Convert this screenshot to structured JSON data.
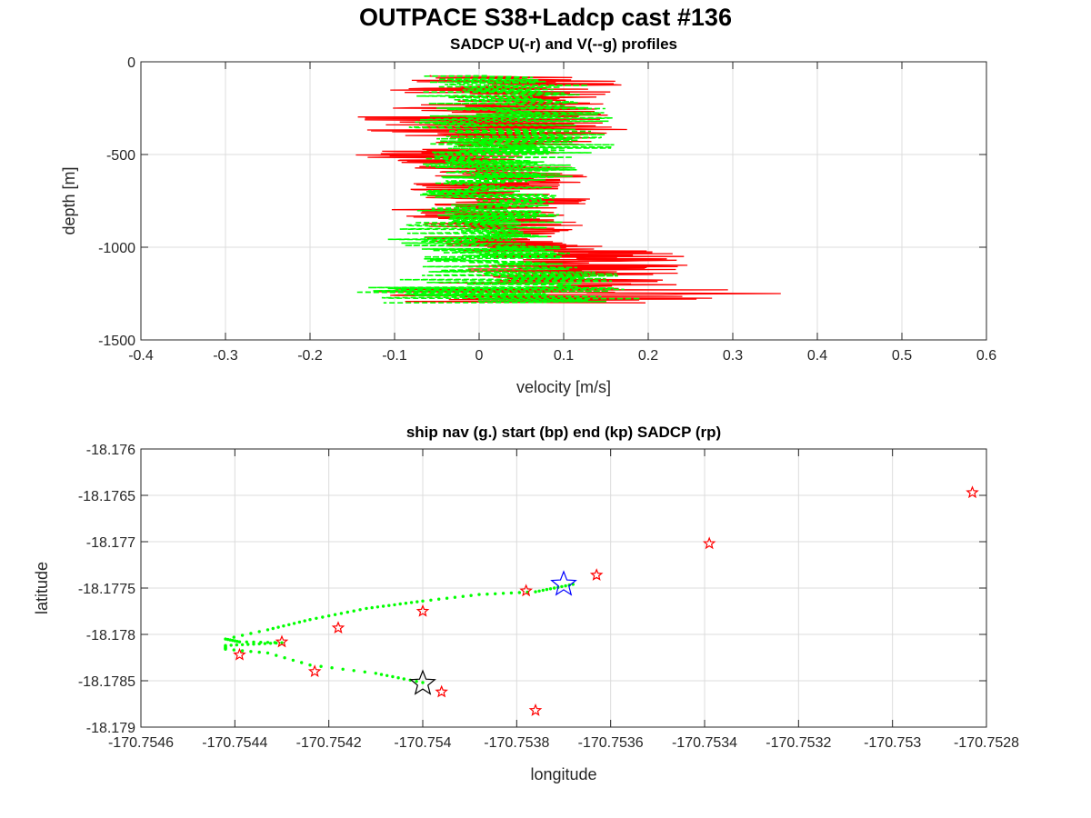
{
  "figure_title": "OUTPACE S38+Ladcp cast #136",
  "chart_data": [
    {
      "type": "line",
      "title": "SADCP U(-r) and V(--g) profiles",
      "xlabel": "velocity [m/s]",
      "ylabel": "depth [m]",
      "xlim": [
        -0.4,
        0.6
      ],
      "ylim": [
        -1500,
        0
      ],
      "xticks": [
        -0.4,
        -0.3,
        -0.2,
        -0.1,
        0,
        0.1,
        0.2,
        0.3,
        0.4,
        0.5,
        0.6
      ],
      "xtick_labels": [
        "-0.4",
        "-0.3",
        "-0.2",
        "-0.1",
        "0",
        "0.1",
        "0.2",
        "0.3",
        "0.4",
        "0.5",
        "0.6"
      ],
      "yticks": [
        0,
        -500,
        -1000,
        -1500
      ],
      "ytick_labels": [
        "0",
        "-500",
        "-1000",
        "-1500"
      ],
      "grid": true,
      "series": [
        {
          "color": "#ff0000",
          "style": "solid",
          "y": [
            -75,
            -100,
            -150,
            -200,
            -250,
            -300,
            -350,
            -400,
            -450,
            -500,
            -550,
            -600,
            -650,
            -700,
            -750,
            -800,
            -850,
            -900,
            -950,
            -1000,
            -1050,
            -1100,
            -1150,
            -1200,
            -1250,
            -1300
          ],
          "x": [
            0.02,
            0.04,
            0.03,
            0.05,
            0.02,
            0.0,
            0.03,
            0.0,
            0.05,
            -0.02,
            0.0,
            0.02,
            0.03,
            -0.01,
            0.05,
            0.0,
            0.02,
            0.03,
            0.02,
            0.06,
            0.14,
            0.12,
            0.1,
            0.08,
            0.1,
            0.05
          ],
          "spread": [
            0.08,
            0.13,
            0.14,
            0.1,
            0.16,
            0.18,
            0.16,
            0.14,
            0.1,
            0.13,
            0.1,
            0.11,
            0.1,
            0.12,
            0.1,
            0.12,
            0.11,
            0.09,
            0.09,
            0.1,
            0.13,
            0.14,
            0.13,
            0.15,
            0.26,
            0.15
          ]
        },
        {
          "color": "#00ff00",
          "style": "dashed",
          "y": [
            -75,
            -100,
            -150,
            -200,
            -250,
            -300,
            -350,
            -400,
            -450,
            -500,
            -550,
            -600,
            -650,
            -700,
            -750,
            -800,
            -850,
            -900,
            -950,
            -1000,
            -1050,
            -1100,
            -1150,
            -1200,
            -1250,
            -1300
          ],
          "x": [
            0.0,
            0.02,
            0.03,
            0.02,
            0.05,
            0.04,
            0.02,
            0.05,
            0.06,
            0.04,
            0.02,
            0.04,
            0.02,
            0.0,
            0.03,
            0.0,
            0.02,
            0.0,
            -0.02,
            0.0,
            0.03,
            0.02,
            0.05,
            0.0,
            0.03,
            0.0
          ],
          "spread": [
            0.1,
            0.1,
            0.11,
            0.1,
            0.12,
            0.12,
            0.13,
            0.12,
            0.12,
            0.1,
            0.09,
            0.09,
            0.08,
            0.08,
            0.09,
            0.08,
            0.09,
            0.1,
            0.1,
            0.1,
            0.1,
            0.1,
            0.12,
            0.16,
            0.22,
            0.15
          ]
        }
      ]
    },
    {
      "type": "scatter",
      "title": "ship nav (g.) start (bp) end (kp) SADCP (rp)",
      "xlabel": "longitude",
      "ylabel": "latitude",
      "xlim": [
        -170.7546,
        -170.7528
      ],
      "ylim": [
        -18.179,
        -18.176
      ],
      "xticks": [
        -170.7546,
        -170.7544,
        -170.7542,
        -170.754,
        -170.7538,
        -170.7536,
        -170.7534,
        -170.7532,
        -170.753,
        -170.7528
      ],
      "xtick_labels": [
        "-170.7546",
        "-170.7544",
        "-170.7542",
        "-170.754",
        "-170.7538",
        "-170.7536",
        "-170.7534",
        "-170.7532",
        "-170.753",
        "-170.7528"
      ],
      "yticks": [
        -18.176,
        -18.1765,
        -18.177,
        -18.1775,
        -18.178,
        -18.1785,
        -18.179
      ],
      "ytick_labels": [
        "-18.176",
        "-18.1765",
        "-18.177",
        "-18.1775",
        "-18.178",
        "-18.1785",
        "-18.179"
      ],
      "grid": true,
      "ship_nav": {
        "color": "#00ff00",
        "path": [
          [
            -170.75368,
            -18.17746
          ],
          [
            -170.75376,
            -18.17754
          ],
          [
            -170.75388,
            -18.17757
          ],
          [
            -170.754,
            -18.17764
          ],
          [
            -170.75412,
            -18.17772
          ],
          [
            -170.75424,
            -18.17784
          ],
          [
            -170.75433,
            -18.17795
          ],
          [
            -170.75442,
            -18.17805
          ],
          [
            -170.75439,
            -18.17808
          ],
          [
            -170.7543,
            -18.17809
          ],
          [
            -170.75442,
            -18.17812
          ],
          [
            -170.75442,
            -18.17816
          ],
          [
            -170.75433,
            -18.1782
          ],
          [
            -170.75424,
            -18.17833
          ],
          [
            -170.7541,
            -18.17842
          ],
          [
            -170.75404,
            -18.17848
          ],
          [
            -170.754,
            -18.17852
          ]
        ],
        "dots_per_segment": [
          10,
          7,
          7,
          10,
          9,
          8,
          5,
          6,
          6,
          10,
          7,
          5,
          5,
          6,
          5,
          3
        ]
      },
      "start": {
        "lon": -170.7537,
        "lat": -18.17746,
        "color": "#0000ff"
      },
      "end": {
        "lon": -170.754,
        "lat": -18.17853,
        "color": "#000000"
      },
      "sadcp": {
        "color": "#ff0000",
        "points": [
          [
            -170.75283,
            -18.17647
          ],
          [
            -170.75339,
            -18.17702
          ],
          [
            -170.75363,
            -18.17736
          ],
          [
            -170.75378,
            -18.17753
          ],
          [
            -170.754,
            -18.17775
          ],
          [
            -170.75418,
            -18.17793
          ],
          [
            -170.7543,
            -18.17808
          ],
          [
            -170.75439,
            -18.17822
          ],
          [
            -170.75423,
            -18.1784
          ],
          [
            -170.75396,
            -18.17862
          ],
          [
            -170.75376,
            -18.17882
          ]
        ]
      }
    }
  ]
}
